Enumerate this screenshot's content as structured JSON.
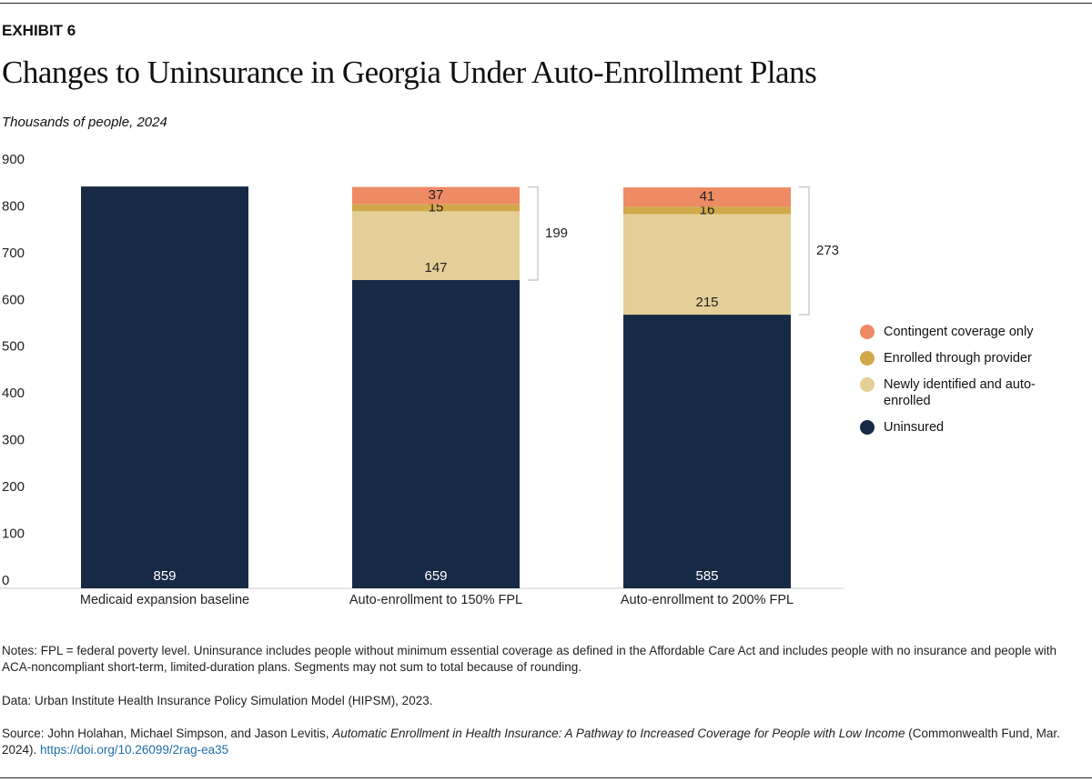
{
  "exhibit": "EXHIBIT 6",
  "chart_data": {
    "type": "stacked_bar",
    "title": "Changes to Uninsurance in Georgia Under Auto-Enrollment Plans",
    "subtitle": "Thousands of people, 2024",
    "categories": [
      "Medicaid expansion baseline",
      "Auto-enrollment to 150% FPL",
      "Auto-enrollment to 200% FPL"
    ],
    "series": [
      {
        "name": "Uninsured",
        "color": "#172a45",
        "values": [
          859,
          659,
          585
        ]
      },
      {
        "name": "Newly identified and auto-enrolled",
        "color": "#e5cf98",
        "values": [
          null,
          147,
          215
        ]
      },
      {
        "name": "Enrolled through provider",
        "color": "#d1a94a",
        "values": [
          null,
          15,
          16
        ]
      },
      {
        "name": "Contingent coverage only",
        "color": "#ee8a64",
        "values": [
          null,
          37,
          41
        ]
      }
    ],
    "bracket_totals": [
      null,
      199,
      273
    ],
    "ylim": [
      0,
      900
    ],
    "yticks": [
      0,
      100,
      200,
      300,
      400,
      500,
      600,
      700,
      800,
      900
    ],
    "grid": false,
    "legend": "right"
  },
  "notes": "Notes: FPL = federal poverty level. Uninsurance includes people without minimum essential coverage as defined in the Affordable Care Act and includes people with no insurance and people with ACA-noncompliant short-term, limited-duration plans. Segments may not sum to total because of rounding.",
  "data_source": "Data: Urban Institute Health Insurance Policy Simulation Model (HIPSM), 2023.",
  "source": {
    "before": "Source: John Holahan, Michael Simpson, and Jason Levitis, ",
    "title": "Automatic Enrollment in Health Insurance: A Pathway to Increased Coverage for People with Low Income",
    "after": " (Commonwealth Fund, Mar. 2024). ",
    "link": "https://doi.org/10.26099/2rag-ea35"
  }
}
